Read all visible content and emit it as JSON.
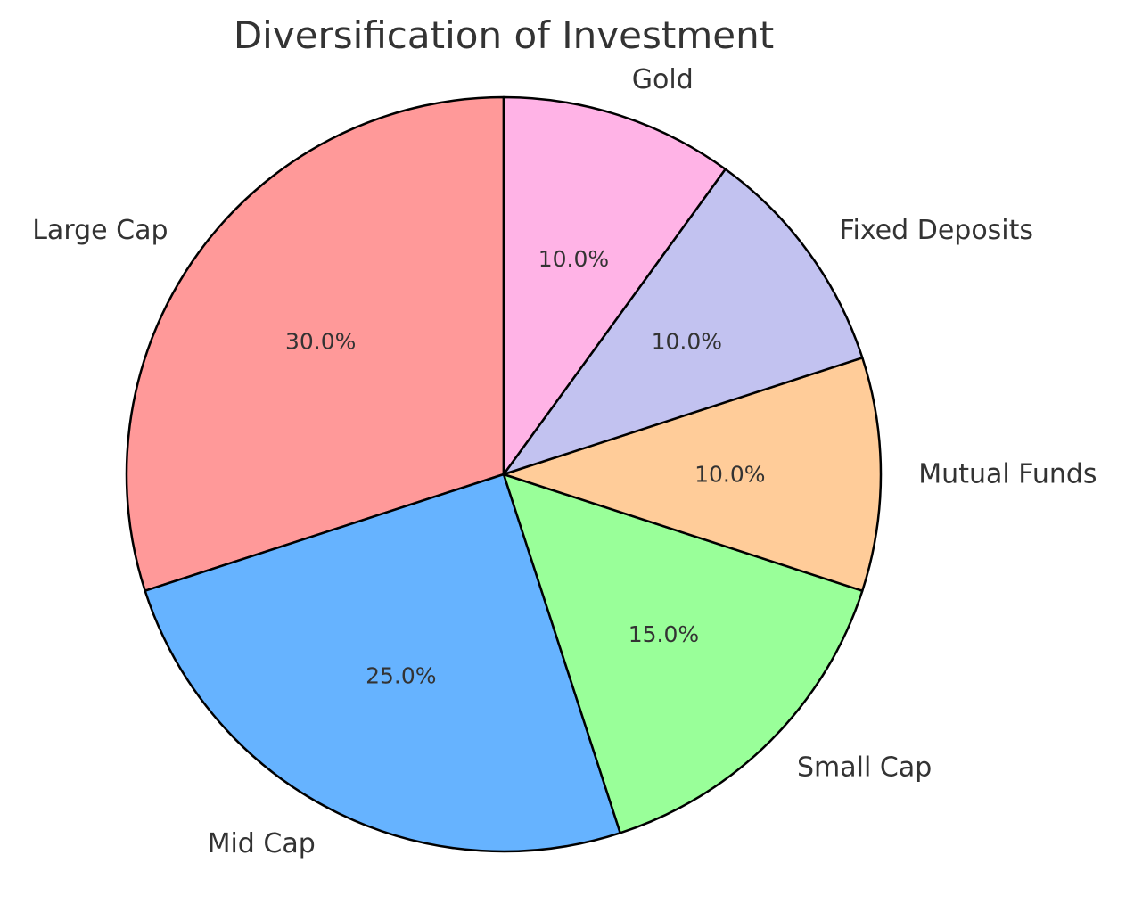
{
  "chart_data": {
    "type": "pie",
    "title": "Diversification of Investment",
    "start_angle_deg": 90,
    "direction": "counterclockwise",
    "slices": [
      {
        "label": "Large Cap",
        "value": 30,
        "pct_label": "30.0%",
        "color": "#ff9999"
      },
      {
        "label": "Mid Cap",
        "value": 25,
        "pct_label": "25.0%",
        "color": "#66b3ff"
      },
      {
        "label": "Small Cap",
        "value": 15,
        "pct_label": "15.0%",
        "color": "#99ff99"
      },
      {
        "label": "Mutual Funds",
        "value": 10,
        "pct_label": "10.0%",
        "color": "#ffcc99"
      },
      {
        "label": "Fixed Deposits",
        "value": 10,
        "pct_label": "10.0%",
        "color": "#c2c2f0"
      },
      {
        "label": "Gold",
        "value": 10,
        "pct_label": "10.0%",
        "color": "#ffb3e6"
      }
    ]
  }
}
